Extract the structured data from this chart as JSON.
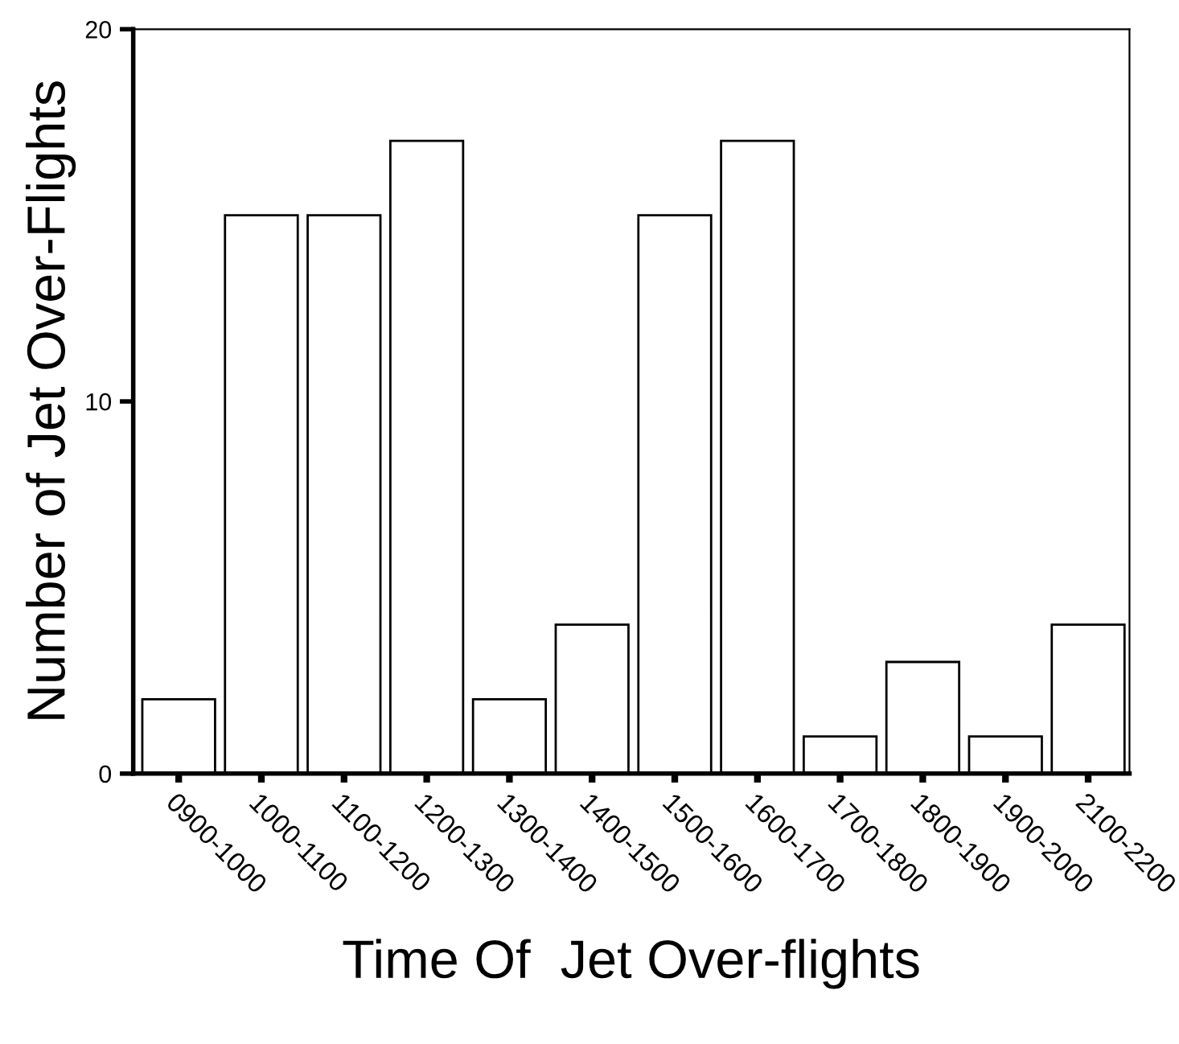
{
  "chart_data": {
    "type": "bar",
    "xlabel": "Time Of  Jet Over-flights",
    "ylabel": "Number of Jet Over-Flights",
    "categories": [
      "0900-1000",
      "1000-1100",
      "1100-1200",
      "1200-1300",
      "1300-1400",
      "1400-1500",
      "1500-1600",
      "1600-1700",
      "1700-1800",
      "1800-1900",
      "1900-2000",
      "2100-2200"
    ],
    "values": [
      2,
      15,
      15,
      17,
      2,
      4,
      15,
      17,
      1,
      3,
      1,
      4
    ],
    "color": "#ffffff",
    "ylim": [
      0,
      20
    ],
    "yticks": [
      0,
      10,
      20
    ],
    "grid": false
  }
}
